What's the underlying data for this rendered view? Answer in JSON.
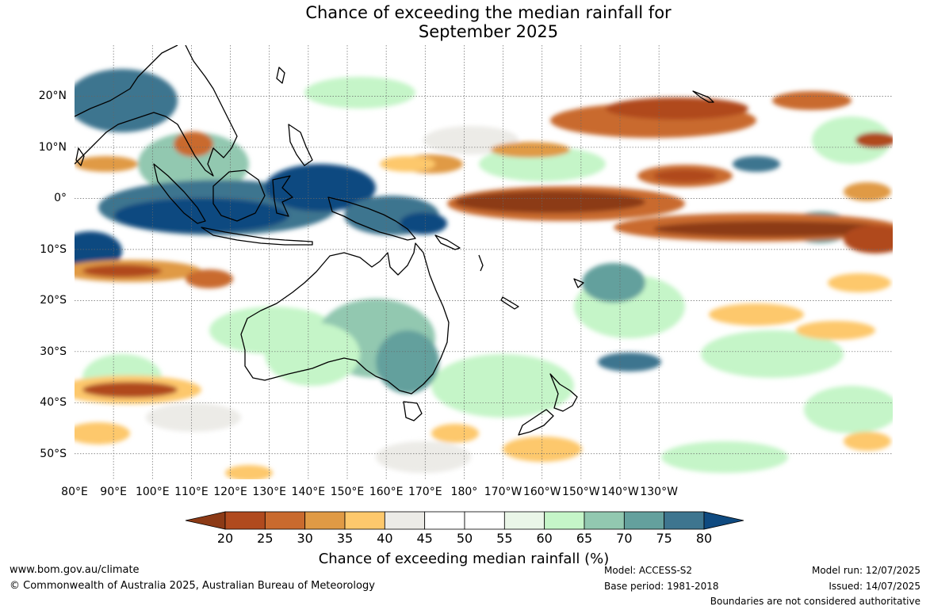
{
  "title_line1": "Chance of exceeding the median rainfall for",
  "title_line2": "September 2025",
  "map": {
    "lon_range": [
      80,
      290
    ],
    "lat_range": [
      -55,
      30
    ],
    "grid_lines": true,
    "lat_labels": [
      {
        "lat": 20,
        "text": "20°N"
      },
      {
        "lat": 10,
        "text": "10°N"
      },
      {
        "lat": 0,
        "text": "0°"
      },
      {
        "lat": -10,
        "text": "10°S"
      },
      {
        "lat": -20,
        "text": "20°S"
      },
      {
        "lat": -30,
        "text": "30°S"
      },
      {
        "lat": -40,
        "text": "40°S"
      },
      {
        "lat": -50,
        "text": "50°S"
      }
    ],
    "lon_labels": [
      {
        "lon": 80,
        "text": "80°E"
      },
      {
        "lon": 90,
        "text": "90°E"
      },
      {
        "lon": 100,
        "text": "100°E"
      },
      {
        "lon": 110,
        "text": "110°E"
      },
      {
        "lon": 120,
        "text": "120°E"
      },
      {
        "lon": 130,
        "text": "130°E"
      },
      {
        "lon": 140,
        "text": "140°E"
      },
      {
        "lon": 150,
        "text": "150°E"
      },
      {
        "lon": 160,
        "text": "160°E"
      },
      {
        "lon": 170,
        "text": "170°E"
      },
      {
        "lon": 180,
        "text": "180°"
      },
      {
        "lon": 190,
        "text": "170°W"
      },
      {
        "lon": 200,
        "text": "160°W"
      },
      {
        "lon": 210,
        "text": "150°W"
      },
      {
        "lon": 220,
        "text": "140°W"
      },
      {
        "lon": 230,
        "text": "130°W"
      }
    ]
  },
  "colorbar": {
    "label": "Chance of exceeding median rainfall (%)",
    "ticks": [
      "20",
      "25",
      "30",
      "35",
      "40",
      "45",
      "50",
      "55",
      "60",
      "65",
      "70",
      "75",
      "80"
    ],
    "under_color": "#8c3a16",
    "over_color": "#0f4a80",
    "colors": [
      "#b04a1e",
      "#c96a2e",
      "#e09a45",
      "#fdc86c",
      "#ecebe7",
      "#ffffff",
      "#ffffff",
      "#eaf6e8",
      "#c5f5c8",
      "#92c8b0",
      "#64a09d",
      "#3e758f"
    ]
  },
  "footer": {
    "website": "www.bom.gov.au/climate",
    "copyright": "© Commonwealth of Australia 2025, Australian Bureau of Meteorology",
    "model": "Model: ACCESS-S2",
    "base_period": "Base period: 1981-2018",
    "model_run": "Model run: 12/07/2025",
    "issued": "Issued: 14/07/2025",
    "disclaimer": "Boundaries are not considered authoritative"
  }
}
